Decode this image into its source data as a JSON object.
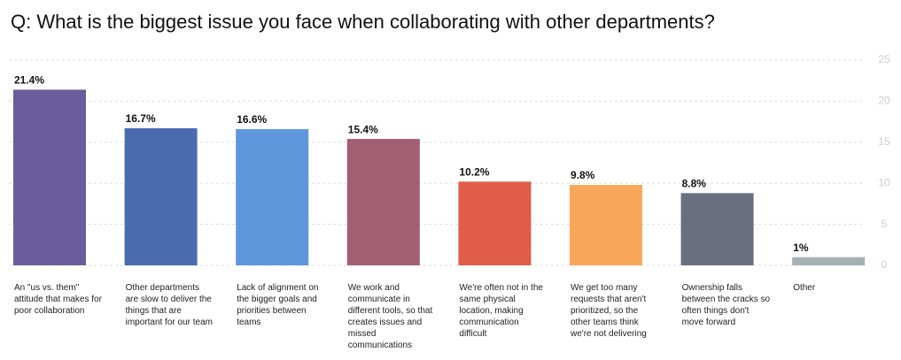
{
  "chart_data": {
    "type": "bar",
    "title": "Q: What is the biggest issue you face when collaborating with other departments?",
    "categories": [
      "An \"us vs. them\" attitude that makes for poor collaboration",
      "Other departments are slow to deliver the things that are important for our team",
      "Lack of alignment on the bigger goals and priorities between teams",
      "We work and communicate in different tools, so that creates issues and missed communications",
      "We're often not in the same physical location, making communication difficult",
      "We get too many requests that aren't prioritized, so the other teams think we're not delivering",
      "Ownership falls between the cracks so often things don't move forward",
      "Other"
    ],
    "values": [
      21.4,
      16.7,
      16.6,
      15.4,
      10.2,
      9.8,
      8.8,
      1
    ],
    "value_labels": [
      "21.4%",
      "16.7%",
      "16.6%",
      "15.4%",
      "10.2%",
      "9.8%",
      "8.8%",
      "1%"
    ],
    "colors": [
      "#6a5d9e",
      "#4a6baf",
      "#5e97dc",
      "#a25e72",
      "#e05d4a",
      "#f9a75b",
      "#6b6e7f",
      "#a3b1b5"
    ],
    "ylim": [
      0,
      25
    ],
    "yticks": [
      0,
      5,
      10,
      15,
      20,
      25
    ],
    "grid": true
  }
}
